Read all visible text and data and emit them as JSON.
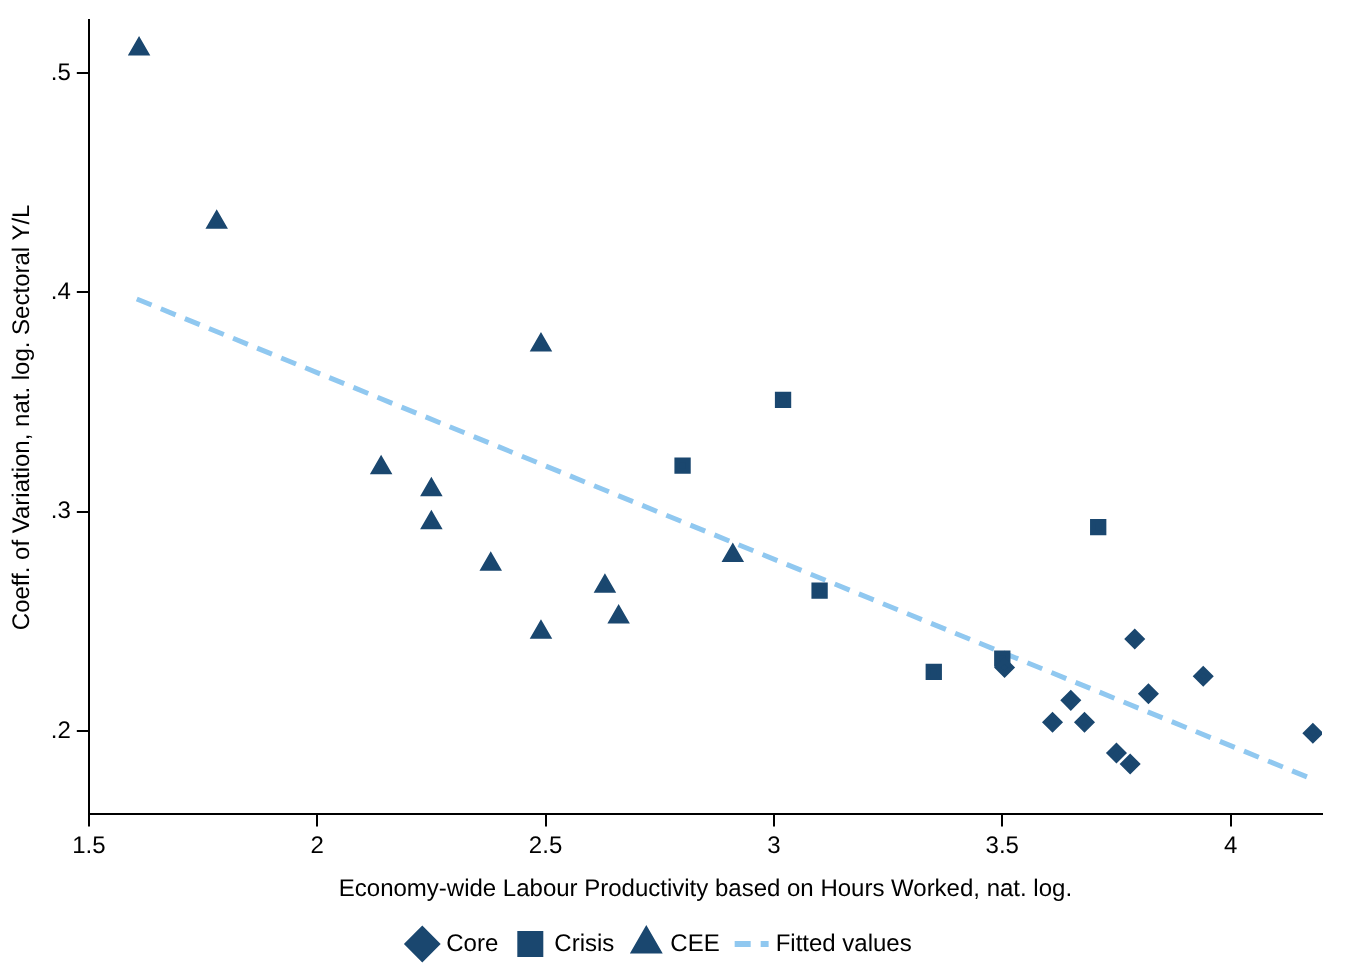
{
  "chart_data": {
    "type": "scatter",
    "xlabel": "Economy-wide Labour Productivity based on Hours Worked, nat. log.",
    "ylabel": "Coeff. of Variation, nat. log. Sectoral Y/L",
    "xlim": [
      1.5,
      4.2
    ],
    "xticks": [
      1.5,
      2,
      2.5,
      3,
      3.5,
      4
    ],
    "ylim": [
      0.162,
      0.524
    ],
    "yticks": [
      {
        "value": 0.2,
        "label": ".2"
      },
      {
        "value": 0.3,
        "label": ".3"
      },
      {
        "value": 0.4,
        "label": ".4"
      },
      {
        "value": 0.5,
        "label": ".5"
      }
    ],
    "grid": false,
    "legend": "bottom",
    "series": [
      {
        "name": "Core",
        "color": "#1a476f",
        "marker": "diamond",
        "x": [
          3.505,
          3.61,
          3.65,
          3.68,
          3.75,
          3.78,
          3.79,
          3.82,
          3.94,
          4.18
        ],
        "values": [
          0.229,
          0.204,
          0.214,
          0.204,
          0.19,
          0.185,
          0.242,
          0.217,
          0.225,
          0.199
        ]
      },
      {
        "name": "Crisis",
        "color": "#1a476f",
        "marker": "square",
        "x": [
          2.8,
          3.02,
          3.1,
          3.35,
          3.5,
          3.71
        ],
        "values": [
          0.321,
          0.351,
          0.264,
          0.227,
          0.233,
          0.293
        ]
      },
      {
        "name": "CEE",
        "color": "#1a476f",
        "marker": "triangle",
        "x": [
          1.61,
          1.78,
          2.14,
          2.25,
          2.25,
          2.38,
          2.49,
          2.49,
          2.63,
          2.66,
          2.91
        ],
        "values": [
          0.511,
          0.432,
          0.32,
          0.31,
          0.295,
          0.276,
          0.376,
          0.245,
          0.266,
          0.252,
          0.28
        ]
      },
      {
        "name": "Fitted values",
        "type": "line",
        "color": "#90c8f0",
        "marker": "none",
        "line_style": "dashed",
        "x": [
          1.605,
          4.18
        ],
        "values": [
          0.397,
          0.178
        ]
      }
    ]
  }
}
